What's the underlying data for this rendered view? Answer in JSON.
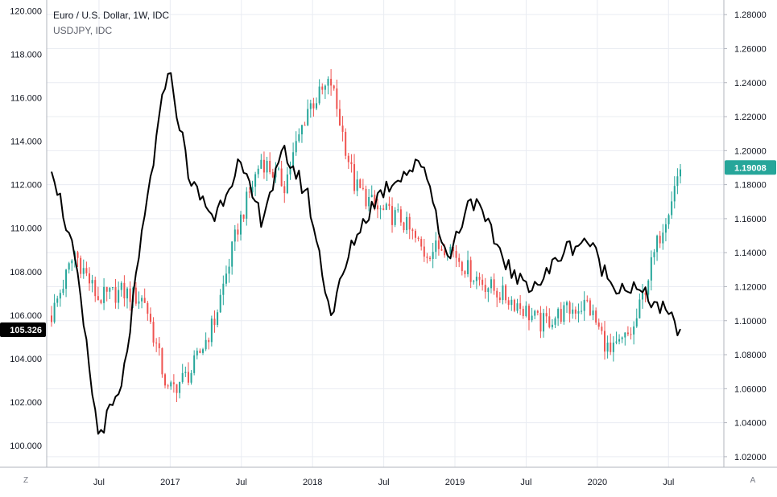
{
  "legend": {
    "main_title": "Euro / U.S. Dollar, 1W, IDC",
    "secondary_title": "USDJPY, IDC"
  },
  "buttons": {
    "left": "Z",
    "right": "A"
  },
  "colors": {
    "up": "#26a69a",
    "down": "#ef5350",
    "line": "#000000",
    "grid": "#e9ecf2",
    "last_price_bg": "#26a69a",
    "left_marker_bg": "#000000"
  },
  "chart_data": {
    "type": "line",
    "x": [
      "2016-03",
      "2016-05",
      "2016-07",
      "2016-09",
      "2016-11",
      "2017-01",
      "2017-03",
      "2017-05",
      "2017-07",
      "2017-09",
      "2017-11",
      "2018-01",
      "2018-03",
      "2018-05",
      "2018-07",
      "2018-09",
      "2018-11",
      "2019-01",
      "2019-03",
      "2019-05",
      "2019-07",
      "2019-09",
      "2019-11",
      "2020-01",
      "2020-03",
      "2020-05",
      "2020-07",
      "2020-08"
    ],
    "x_ticks": [
      "Jul",
      "2017",
      "Jul",
      "2018",
      "Jul",
      "2019",
      "Jul",
      "2020",
      "Jul"
    ],
    "series": [
      {
        "name": "Euro / U.S. Dollar",
        "type": "candlestick",
        "axis": "right",
        "values": [
          1.103,
          1.14,
          1.113,
          1.117,
          1.112,
          1.058,
          1.07,
          1.1,
          1.155,
          1.195,
          1.18,
          1.225,
          1.24,
          1.18,
          1.165,
          1.16,
          1.14,
          1.145,
          1.128,
          1.118,
          1.11,
          1.098,
          1.105,
          1.11,
          1.08,
          1.095,
          1.145,
          1.19
        ]
      },
      {
        "name": "USDJPY",
        "type": "line",
        "axis": "left",
        "values": [
          113.0,
          108.5,
          100.5,
          102.5,
          110.5,
          117.5,
          112.0,
          110.5,
          113.0,
          110.5,
          113.5,
          111.5,
          106.0,
          109.5,
          111.5,
          112.5,
          113.0,
          108.5,
          111.5,
          109.5,
          107.5,
          107.5,
          109.0,
          109.5,
          107.5,
          107.2,
          106.5,
          105.3
        ]
      }
    ],
    "left_axis": {
      "ticks": [
        "100.000",
        "102.000",
        "104.000",
        "106.000",
        "108.000",
        "110.000",
        "112.000",
        "114.000",
        "116.000",
        "118.000",
        "120.000"
      ],
      "range": [
        99.0,
        120.5
      ]
    },
    "right_axis": {
      "ticks": [
        "1.02000",
        "1.04000",
        "1.06000",
        "1.08000",
        "1.10000",
        "1.12000",
        "1.14000",
        "1.16000",
        "1.18000",
        "1.20000",
        "1.22000",
        "1.24000",
        "1.26000",
        "1.28000"
      ],
      "range": [
        1.0138,
        1.2886
      ]
    },
    "last_value_right": "1.19008",
    "last_value_left": "105.326",
    "grid": true
  }
}
